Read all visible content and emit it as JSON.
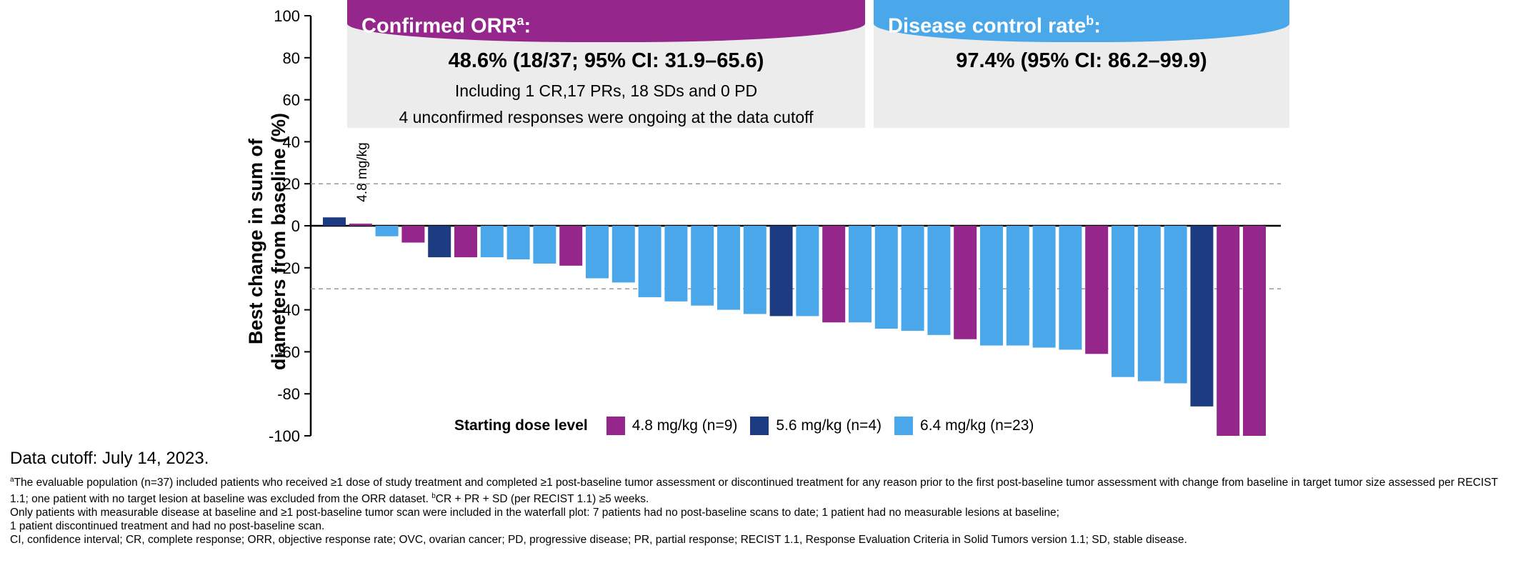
{
  "chart_data": {
    "type": "bar",
    "ylabel_line1": "Best change in sum of",
    "ylabel_line2": "diameters from baseline (%)",
    "ylim": [
      -100,
      100
    ],
    "yticks": [
      100,
      80,
      60,
      40,
      20,
      0,
      -20,
      -40,
      -60,
      -80,
      -100
    ],
    "reference_lines": [
      20,
      -30
    ],
    "grid": false,
    "legend_position": "bottom-center",
    "bar_annotation": {
      "text": "4.8 mg/kg",
      "bar_index": 1
    },
    "groups": {
      "4.8": {
        "label": "4.8 mg/kg (n=9)",
        "color": "#95268c"
      },
      "5.6": {
        "label": "5.6 mg/kg (n=4)",
        "color": "#1d3b80"
      },
      "6.4": {
        "label": "6.4 mg/kg (n=23)",
        "color": "#4aa8ea"
      }
    },
    "bars": [
      {
        "value": 4,
        "group": "5.6"
      },
      {
        "value": 1,
        "group": "4.8"
      },
      {
        "value": -5,
        "group": "6.4"
      },
      {
        "value": -8,
        "group": "4.8"
      },
      {
        "value": -15,
        "group": "5.6"
      },
      {
        "value": -15,
        "group": "4.8"
      },
      {
        "value": -15,
        "group": "6.4"
      },
      {
        "value": -16,
        "group": "6.4"
      },
      {
        "value": -18,
        "group": "6.4"
      },
      {
        "value": -19,
        "group": "4.8"
      },
      {
        "value": -25,
        "group": "6.4"
      },
      {
        "value": -27,
        "group": "6.4"
      },
      {
        "value": -34,
        "group": "6.4"
      },
      {
        "value": -36,
        "group": "6.4"
      },
      {
        "value": -38,
        "group": "6.4"
      },
      {
        "value": -40,
        "group": "6.4"
      },
      {
        "value": -42,
        "group": "6.4"
      },
      {
        "value": -43,
        "group": "5.6"
      },
      {
        "value": -43,
        "group": "6.4"
      },
      {
        "value": -46,
        "group": "4.8"
      },
      {
        "value": -46,
        "group": "6.4"
      },
      {
        "value": -49,
        "group": "6.4"
      },
      {
        "value": -50,
        "group": "6.4"
      },
      {
        "value": -52,
        "group": "6.4"
      },
      {
        "value": -54,
        "group": "4.8"
      },
      {
        "value": -57,
        "group": "6.4"
      },
      {
        "value": -57,
        "group": "6.4"
      },
      {
        "value": -58,
        "group": "6.4"
      },
      {
        "value": -59,
        "group": "6.4"
      },
      {
        "value": -61,
        "group": "4.8"
      },
      {
        "value": -72,
        "group": "6.4"
      },
      {
        "value": -74,
        "group": "6.4"
      },
      {
        "value": -75,
        "group": "6.4"
      },
      {
        "value": -86,
        "group": "5.6"
      },
      {
        "value": -100,
        "group": "4.8"
      },
      {
        "value": -100,
        "group": "4.8"
      }
    ]
  },
  "boxes": {
    "orr": {
      "title": "Confirmed ORR",
      "sup": "a",
      "suffix": ":",
      "value": "48.6% (18/37; 95% CI: 31.9–65.6)",
      "line1": "Including 1 CR,17 PRs, 18 SDs and 0 PD",
      "line2": "4 unconfirmed responses were ongoing at the data cutoff",
      "color": "#95268c"
    },
    "dcr": {
      "title": "Disease control rate",
      "sup": "b",
      "suffix": ":",
      "value": "97.4% (95% CI: 86.2–99.9)",
      "color": "#4aa8ea"
    }
  },
  "legend": {
    "title": "Starting dose level",
    "items": [
      {
        "label": "4.8 mg/kg (n=9)",
        "color": "#95268c"
      },
      {
        "label": "5.6 mg/kg (n=4)",
        "color": "#1d3b80"
      },
      {
        "label": "6.4 mg/kg (n=23)",
        "color": "#4aa8ea"
      }
    ]
  },
  "footer": {
    "cutoff": "Data cutoff: July 14, 2023.",
    "note_a_sup": "a",
    "note_a": "The evaluable population (n=37) included patients who received ≥1 dose of study treatment and completed ≥1 post-baseline tumor assessment or discontinued treatment for any reason prior to the first post-baseline tumor assessment with change from baseline in target tumor size assessed per RECIST 1.1; one patient with no target lesion at baseline was excluded from the ORR dataset.",
    "note_b_sup": "b",
    "note_b": "CR + PR + SD (per RECIST 1.1) ≥5 weeks.",
    "line3": "Only patients with measurable disease at baseline and  ≥1 post-baseline tumor scan were included in the waterfall plot: 7 patients had no post-baseline scans to date; 1 patient had no measurable lesions at baseline;",
    "line4": "1 patient discontinued treatment and had no post-baseline scan.",
    "line5": "CI, confidence interval; CR, complete response; ORR, objective response rate; OVC, ovarian cancer; PD, progressive disease; PR, partial response; RECIST 1.1, Response Evaluation Criteria in Solid Tumors version 1.1; SD, stable disease."
  }
}
